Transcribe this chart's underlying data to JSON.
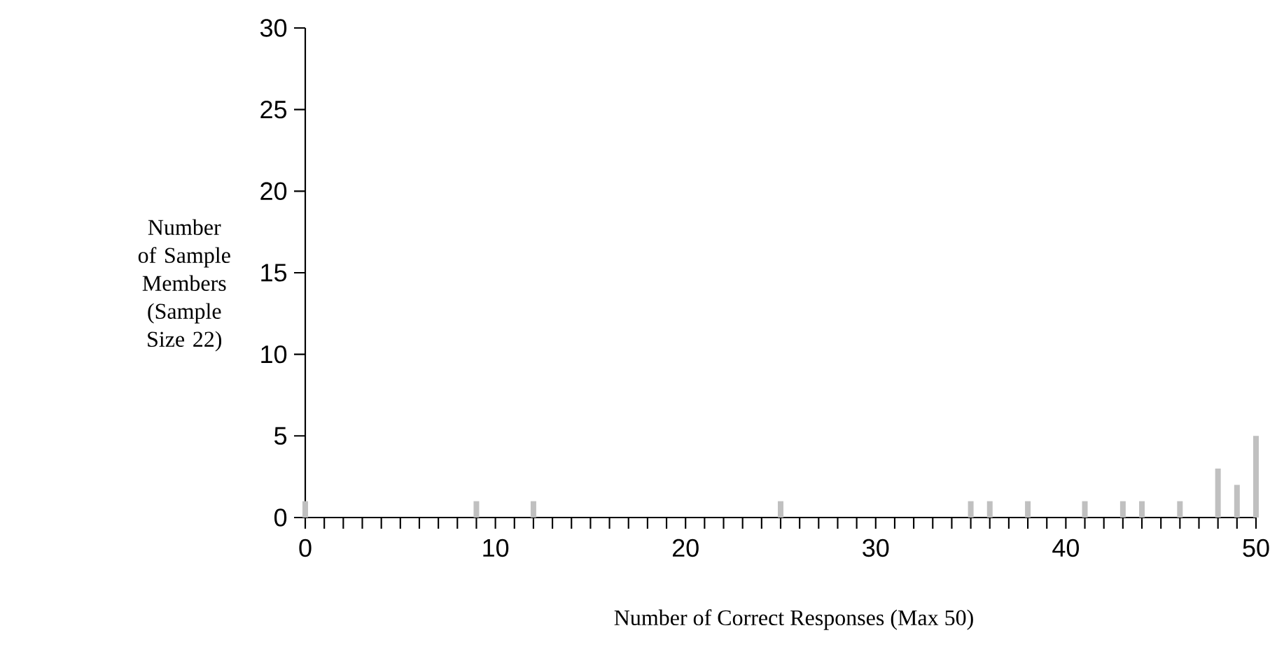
{
  "chart_data": {
    "type": "bar",
    "xlabel": "Number of Correct Responses (Max 50)",
    "ylabel": "Number of Sample Members (Sample Size 22)",
    "x": [
      0,
      9,
      12,
      25,
      35,
      36,
      38,
      41,
      43,
      44,
      46,
      48,
      49,
      50
    ],
    "values": [
      1,
      1,
      1,
      1,
      1,
      1,
      1,
      1,
      1,
      1,
      1,
      3,
      2,
      5
    ],
    "color": "#c0c0c0",
    "xlim": [
      0,
      50
    ],
    "ylim": [
      0,
      30
    ],
    "xticks": [
      0,
      10,
      20,
      30,
      40,
      50
    ],
    "yticks": [
      0,
      5,
      10,
      15,
      20,
      25,
      30
    ]
  }
}
